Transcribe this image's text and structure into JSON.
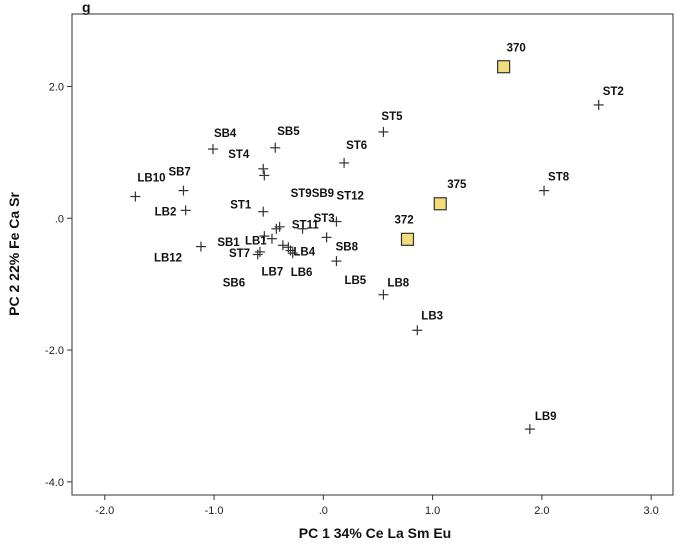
{
  "chart_data": {
    "type": "scatter",
    "title": "",
    "top_title_fragment": "g",
    "xlabel": "PC 1 34%  Ce La Sm Eu",
    "ylabel": "PC 2  22%  Fe Ca Sr",
    "xlim": [
      -2.3,
      3.2
    ],
    "ylim": [
      -4.2,
      3.1
    ],
    "x_ticks": [
      {
        "value": -2.0,
        "label": "-2.0"
      },
      {
        "value": -1.0,
        "label": "-1.0"
      },
      {
        "value": 0.0,
        "label": ".0"
      },
      {
        "value": 1.0,
        "label": "1.0"
      },
      {
        "value": 2.0,
        "label": "2.0"
      },
      {
        "value": 3.0,
        "label": "3.0"
      }
    ],
    "y_ticks": [
      {
        "value": 2.0,
        "label": "2.0"
      },
      {
        "value": 0.0,
        "label": ".0"
      },
      {
        "value": -2.0,
        "label": "-2.0"
      },
      {
        "value": -4.0,
        "label": "-4.0"
      }
    ],
    "grid": false,
    "legend": "none",
    "colors": {
      "highlight_fill": "#f3dc7a",
      "highlight_stroke": "#333333",
      "marker": "#333333",
      "frame": "#333333"
    },
    "series": [
      {
        "marker": "cross",
        "points": [
          {
            "label": "LB10",
            "x": -1.72,
            "y": 0.33
          },
          {
            "label": "SB7",
            "x": -1.28,
            "y": 0.42
          },
          {
            "label": "LB2",
            "x": -1.26,
            "y": 0.12
          },
          {
            "label": "LB12",
            "x": -1.12,
            "y": -0.43
          },
          {
            "label": "SB4",
            "x": -1.01,
            "y": 1.05
          },
          {
            "label": "SB5",
            "x": -0.44,
            "y": 1.07
          },
          {
            "label": "ST4",
            "x": -0.55,
            "y": 0.75
          },
          {
            "label": "",
            "x": -0.54,
            "y": 0.65
          },
          {
            "label": "ST1",
            "x": -0.55,
            "y": 0.1
          },
          {
            "label": "SB1",
            "x": -0.54,
            "y": -0.27
          },
          {
            "label": "LB1",
            "x": -0.47,
            "y": -0.31
          },
          {
            "label": "",
            "x": -0.43,
            "y": -0.16
          },
          {
            "label": "ST9SB9",
            "x": -0.4,
            "y": -0.13
          },
          {
            "label": "ST11",
            "x": -0.37,
            "y": -0.41
          },
          {
            "label": "ST7",
            "x": -0.58,
            "y": -0.51
          },
          {
            "label": "LB7",
            "x": -0.3,
            "y": -0.49
          },
          {
            "label": "LB4",
            "x": -0.32,
            "y": -0.44
          },
          {
            "label": "LB6",
            "x": -0.28,
            "y": -0.53
          },
          {
            "label": "ST3",
            "x": -0.19,
            "y": -0.16
          },
          {
            "label": "SB8",
            "x": 0.03,
            "y": -0.29
          },
          {
            "label": "ST12",
            "x": 0.12,
            "y": -0.05
          },
          {
            "label": "LB5",
            "x": 0.12,
            "y": -0.65
          },
          {
            "label": "SB6",
            "x": -0.6,
            "y": -0.55
          },
          {
            "label": "ST6",
            "x": 0.19,
            "y": 0.84
          },
          {
            "label": "ST5",
            "x": 0.55,
            "y": 1.31
          },
          {
            "label": "LB8",
            "x": 0.55,
            "y": -1.16
          },
          {
            "label": "LB3",
            "x": 0.86,
            "y": -1.7
          },
          {
            "label": "ST2",
            "x": 2.52,
            "y": 1.72
          },
          {
            "label": "ST8",
            "x": 2.02,
            "y": 0.42
          },
          {
            "label": "LB9",
            "x": 1.89,
            "y": -3.2
          }
        ]
      },
      {
        "marker": "square",
        "points": [
          {
            "label": "370",
            "x": 1.65,
            "y": 2.3
          },
          {
            "label": "375",
            "x": 1.07,
            "y": 0.22
          },
          {
            "label": "372",
            "x": 0.77,
            "y": -0.32
          }
        ]
      }
    ]
  }
}
